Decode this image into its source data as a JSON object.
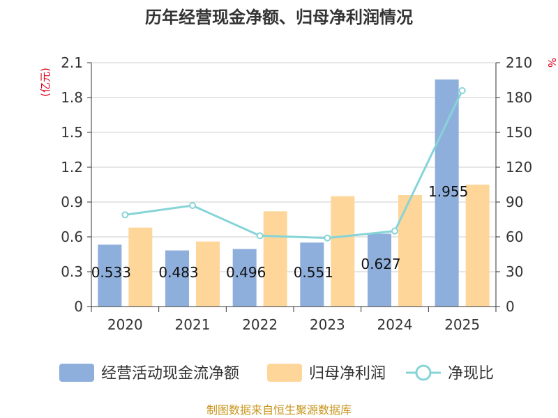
{
  "chart_data": {
    "type": "bar+line",
    "title": "历年经营现金净额、归母净利润情况",
    "categories": [
      "2020",
      "2021",
      "2022",
      "2023",
      "2024",
      "2025"
    ],
    "series": [
      {
        "name": "经营活动现金流净额",
        "kind": "bar",
        "axis": "left",
        "color": "#8eaedc",
        "values": [
          0.533,
          0.483,
          0.496,
          0.551,
          0.627,
          1.955
        ],
        "labels": [
          "0.533",
          "0.483",
          "0.496",
          "0.551",
          "0.627",
          "1.955"
        ]
      },
      {
        "name": "归母净利润",
        "kind": "bar",
        "axis": "left",
        "color": "#ffd699",
        "values": [
          0.68,
          0.56,
          0.82,
          0.95,
          0.96,
          1.05
        ]
      },
      {
        "name": "净现比",
        "kind": "line",
        "axis": "right",
        "color": "#86d4d8",
        "values": [
          79,
          87,
          61,
          59,
          65,
          186
        ]
      }
    ],
    "left_axis": {
      "label": "(亿元)",
      "ylim": [
        0,
        2.1
      ],
      "ticks": [
        "0",
        "0.3",
        "0.6",
        "0.9",
        "1.2",
        "1.5",
        "1.8",
        "2.1"
      ]
    },
    "right_axis": {
      "label": "%",
      "ylim": [
        0,
        210
      ],
      "ticks": [
        "0",
        "30",
        "60",
        "90",
        "120",
        "150",
        "180",
        "210"
      ]
    },
    "grid": true,
    "legend_position": "bottom"
  },
  "source": "制图数据来自恒生聚源数据库"
}
